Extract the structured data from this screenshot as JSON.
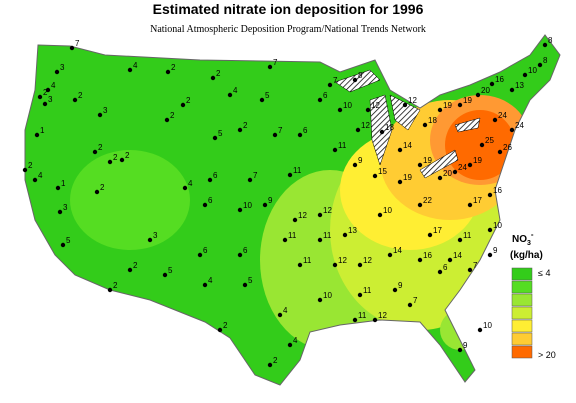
{
  "header": {
    "title": "Estimated nitrate ion deposition for 1996",
    "subtitle": "National Atmospheric Deposition Program/National Trends Network"
  },
  "legend": {
    "symbol": "NO",
    "subscript": "3",
    "superscript": "-",
    "unit": "(kg/ha)",
    "low_label": "≤ 4",
    "high_label": "> 20",
    "colors": [
      "#33cc1a",
      "#55dd22",
      "#99e633",
      "#ccee33",
      "#ffee33",
      "#ffcc33",
      "#ff6a00"
    ]
  },
  "stations": [
    "7",
    "3",
    "2",
    "4",
    "3",
    "2",
    "3",
    "1",
    "2",
    "4",
    "1",
    "3",
    "5",
    "2",
    "2",
    "2",
    "2",
    "4",
    "2",
    "2",
    "7",
    "4",
    "2",
    "2",
    "5",
    "2",
    "7",
    "6",
    "5",
    "7",
    "6",
    "8",
    "10",
    "12",
    "12",
    "18",
    "14",
    "18",
    "12",
    "19",
    "19",
    "20",
    "16",
    "13",
    "10",
    "8",
    "8",
    "24",
    "24",
    "25",
    "26",
    "19",
    "24",
    "20",
    "19",
    "19",
    "15",
    "9",
    "11",
    "11",
    "7",
    "6",
    "4",
    "6",
    "10",
    "9",
    "12",
    "12",
    "13",
    "10",
    "22",
    "17",
    "16",
    "17",
    "11",
    "10",
    "14",
    "16",
    "14",
    "12",
    "12",
    "11",
    "11",
    "11",
    "6",
    "6",
    "3",
    "2",
    "2",
    "5",
    "4",
    "5",
    "2",
    "4",
    "10",
    "11",
    "9",
    "7",
    "12",
    "11",
    "4",
    "2",
    "10",
    "9",
    "6",
    "7",
    "9"
  ]
}
